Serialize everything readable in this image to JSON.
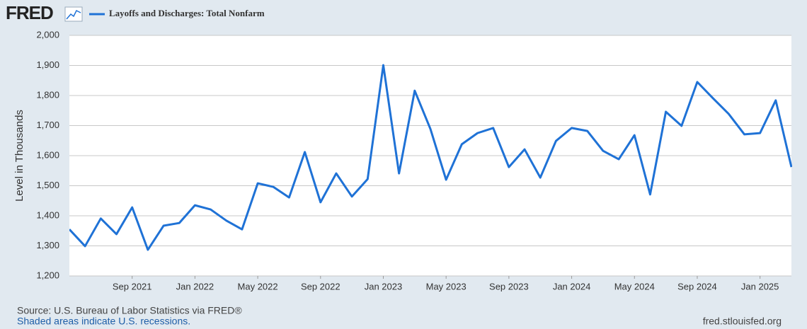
{
  "logo": "FRED",
  "chart_data": {
    "type": "line",
    "y_label": "Level in Thousands",
    "x": [
      "2021-05",
      "2021-06",
      "2021-07",
      "2021-08",
      "2021-09",
      "2021-10",
      "2021-11",
      "2021-12",
      "2022-01",
      "2022-02",
      "2022-03",
      "2022-04",
      "2022-05",
      "2022-06",
      "2022-07",
      "2022-08",
      "2022-09",
      "2022-10",
      "2022-11",
      "2022-12",
      "2023-01",
      "2023-02",
      "2023-03",
      "2023-04",
      "2023-05",
      "2023-06",
      "2023-07",
      "2023-08",
      "2023-09",
      "2023-10",
      "2023-11",
      "2023-12",
      "2024-01",
      "2024-02",
      "2024-03",
      "2024-04",
      "2024-05",
      "2024-06",
      "2024-07",
      "2024-08",
      "2024-09",
      "2024-10",
      "2024-11",
      "2024-12",
      "2025-01",
      "2025-02",
      "2025-03"
    ],
    "series": [
      {
        "name": "Layoffs and Discharges: Total Nonfarm",
        "color": "#1f72d6",
        "values": [
          1355,
          1299,
          1391,
          1339,
          1428,
          1287,
          1367,
          1376,
          1435,
          1421,
          1384,
          1355,
          1508,
          1496,
          1461,
          1612,
          1445,
          1541,
          1464,
          1522,
          1901,
          1541,
          1816,
          1689,
          1520,
          1638,
          1675,
          1692,
          1562,
          1621,
          1527,
          1649,
          1692,
          1682,
          1616,
          1588,
          1668,
          1471,
          1746,
          1699,
          1845,
          1791,
          1739,
          1671,
          1675,
          1784,
          1562
        ]
      }
    ],
    "xlim": [
      "2021-05",
      "2025-03"
    ],
    "xticks": [
      {
        "value": "2021-09",
        "label": "Sep 2021"
      },
      {
        "value": "2022-01",
        "label": "Jan 2022"
      },
      {
        "value": "2022-05",
        "label": "May 2022"
      },
      {
        "value": "2022-09",
        "label": "Sep 2022"
      },
      {
        "value": "2023-01",
        "label": "Jan 2023"
      },
      {
        "value": "2023-05",
        "label": "May 2023"
      },
      {
        "value": "2023-09",
        "label": "Sep 2023"
      },
      {
        "value": "2024-01",
        "label": "Jan 2024"
      },
      {
        "value": "2024-05",
        "label": "May 2024"
      },
      {
        "value": "2024-09",
        "label": "Sep 2024"
      },
      {
        "value": "2025-01",
        "label": "Jan 2025"
      }
    ],
    "ylim": [
      1200,
      2000
    ],
    "yticks": [
      {
        "value": 1200,
        "label": "1,200"
      },
      {
        "value": 1300,
        "label": "1,300"
      },
      {
        "value": 1400,
        "label": "1,400"
      },
      {
        "value": 1500,
        "label": "1,500"
      },
      {
        "value": 1600,
        "label": "1,600"
      },
      {
        "value": 1700,
        "label": "1,700"
      },
      {
        "value": 1800,
        "label": "1,800"
      },
      {
        "value": 1900,
        "label": "1,900"
      },
      {
        "value": 2000,
        "label": "2,000"
      }
    ],
    "grid": true
  },
  "footer": {
    "source": "Source: U.S. Bureau of Labor Statistics via FRED®",
    "note": "Shaded areas indicate U.S. recessions.",
    "site": "fred.stlouisfed.org"
  }
}
